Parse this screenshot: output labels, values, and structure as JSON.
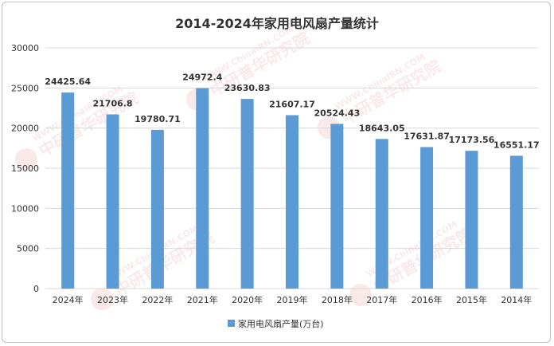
{
  "chart_data": {
    "type": "bar",
    "title": "2014-2024年家用电风扇产量统计",
    "categories": [
      "2024年",
      "2023年",
      "2022年",
      "2021年",
      "2020年",
      "2019年",
      "2018年",
      "2017年",
      "2016年",
      "2015年",
      "2014年"
    ],
    "series": [
      {
        "name": "家用电风扇产量(万台)",
        "values": [
          24425.64,
          21706.8,
          19780.71,
          24972.4,
          23630.83,
          21607.17,
          20524.43,
          18643.05,
          17631.87,
          17173.56,
          16551.17
        ],
        "labels": [
          "24425.64",
          "21706.8",
          "19780.71",
          "24972.4",
          "23630.83",
          "21607.17",
          "20524.43",
          "18643.05",
          "17631.87",
          "17173.56",
          "16551.17"
        ]
      }
    ],
    "ylim": [
      0,
      30000
    ],
    "yticks": [
      0,
      5000,
      10000,
      15000,
      20000,
      25000,
      30000
    ],
    "grid": true,
    "legend_position": "bottom",
    "colors": {
      "bar": "#5b9bd5",
      "grid": "#d9d9d9",
      "text": "#333333"
    }
  },
  "watermark": {
    "url": "WWW.ChinaIRN.COM",
    "name": "中研普华研究院"
  }
}
